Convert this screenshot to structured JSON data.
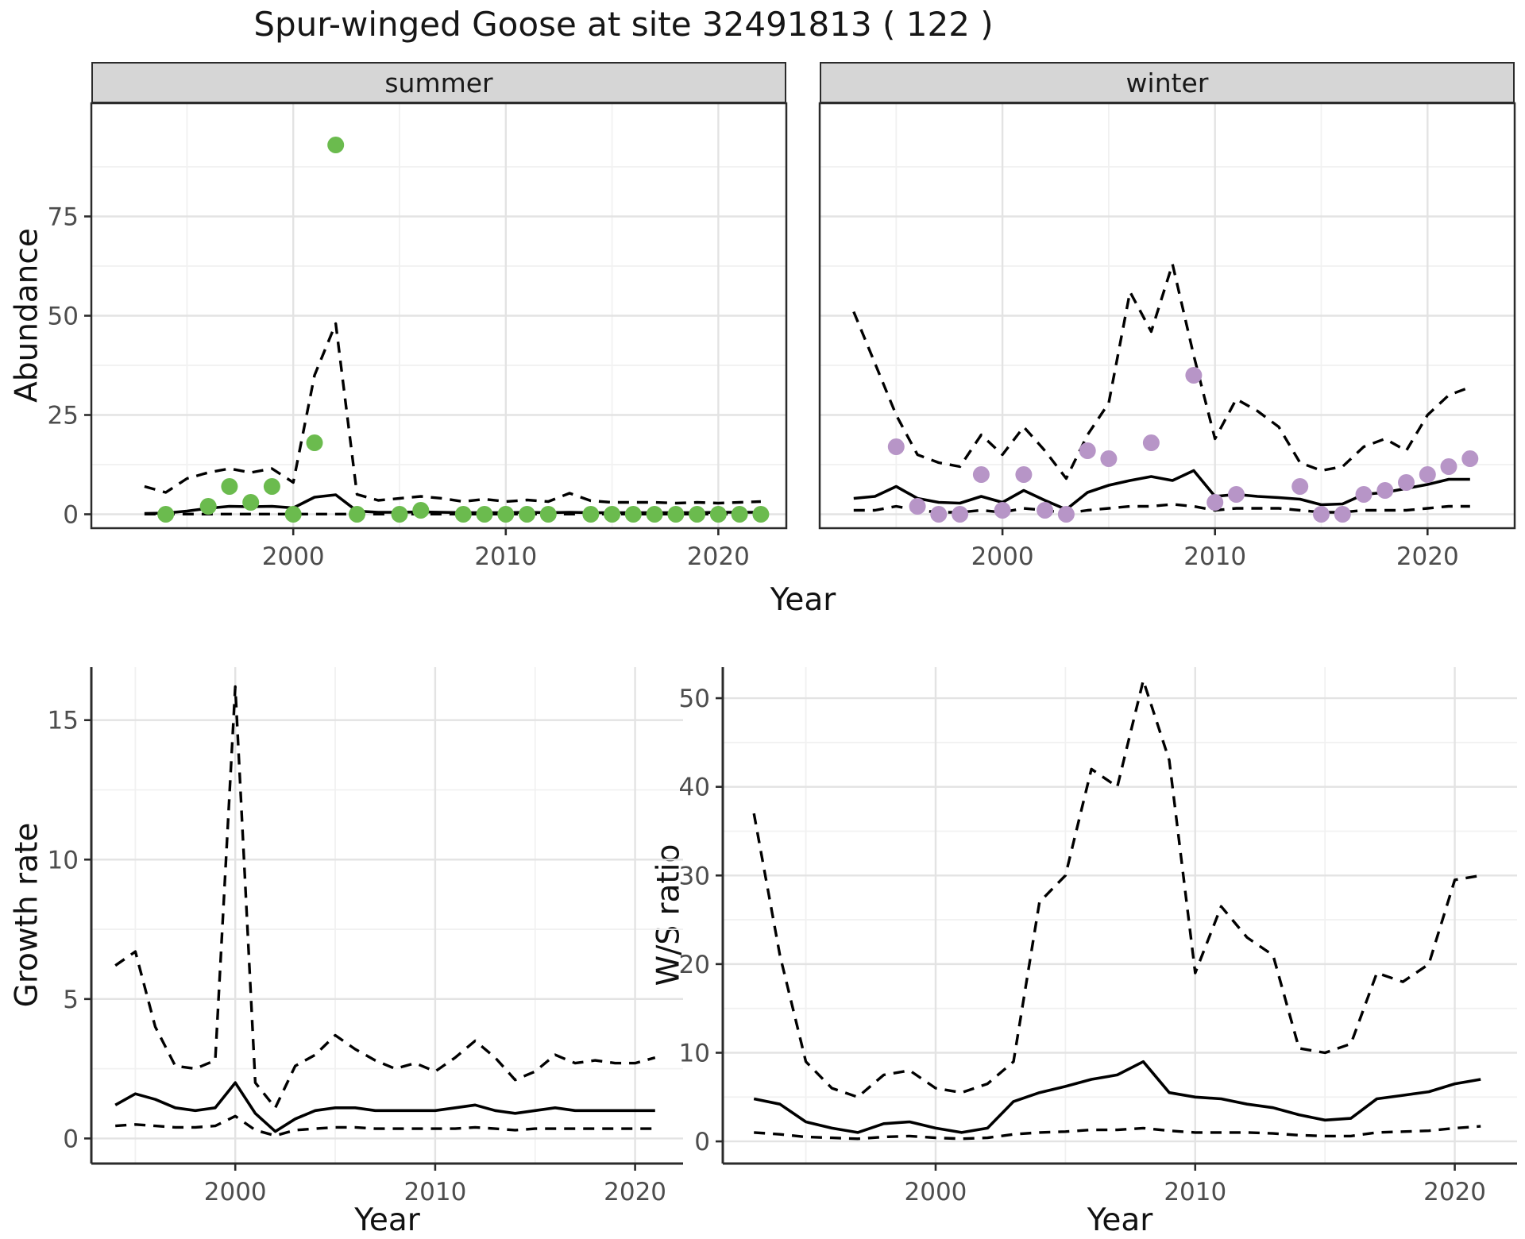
{
  "title": "Spur-winged Goose at site 32491813 ( 122 )",
  "labels": {
    "x": "Year",
    "y_abundance": "Abundance",
    "y_growth": "Growth rate",
    "y_ws": "W/S ratio",
    "facet_summer": "summer",
    "facet_winter": "winter"
  },
  "style": {
    "point_green": "#6BBB4E",
    "point_purple": "#B795C7",
    "strip_bg": "#D6D6D6",
    "grid_major": "#E3E3E3",
    "grid_minor": "#F1F1F1",
    "line": "#000000",
    "border": "#2B2B2B",
    "tick_label": "#4D4D4D"
  },
  "chart_data": [
    {
      "name": "summer_abundance",
      "type": "line",
      "facet": "summer",
      "xlabel": "Year",
      "ylabel": "Abundance",
      "point_color": "#6BBB4E",
      "axes": {
        "xlim": [
          1990.5,
          2023.2
        ],
        "ylim": [
          -3.5,
          103.5
        ],
        "xticks": [
          2000,
          2010,
          2020
        ],
        "xminor": [
          1995,
          2005,
          2015
        ],
        "yticks": [
          0,
          25,
          50,
          75
        ],
        "yminor": [
          12.5,
          37.5,
          62.5,
          87.5
        ]
      },
      "years": [
        1993,
        1994,
        1995,
        1996,
        1997,
        1998,
        1999,
        2000,
        2001,
        2002,
        2003,
        2004,
        2005,
        2006,
        2007,
        2008,
        2009,
        2010,
        2011,
        2012,
        2013,
        2014,
        2015,
        2016,
        2017,
        2018,
        2019,
        2020,
        2021,
        2022
      ],
      "series": [
        {
          "name": "fit",
          "style": "solid",
          "values": [
            0.2,
            0.3,
            0.8,
            1.5,
            2.0,
            1.9,
            2.0,
            1.6,
            4.3,
            4.9,
            0.8,
            0.5,
            0.5,
            0.6,
            0.5,
            0.4,
            0.4,
            0.4,
            0.5,
            0.4,
            0.5,
            0.4,
            0.4,
            0.4,
            0.4,
            0.4,
            0.4,
            0.5,
            0.5,
            0.5
          ]
        },
        {
          "name": "upper_ci",
          "style": "dashed",
          "values": [
            7,
            5.5,
            9,
            10.5,
            11.5,
            10.5,
            11.5,
            8,
            35,
            48,
            5,
            3.5,
            4,
            4.5,
            4,
            3.2,
            3.8,
            3.2,
            3.6,
            3.2,
            5.3,
            3.4,
            3,
            3,
            3,
            2.8,
            3,
            2.8,
            3,
            3.2
          ]
        },
        {
          "name": "lower_ci",
          "style": "dashed",
          "values": [
            0.05,
            0.05,
            0.05,
            0.05,
            0.05,
            0.05,
            0.05,
            0.05,
            0.05,
            0.05,
            0.05,
            0.05,
            0.05,
            0.05,
            0.05,
            0.05,
            0.05,
            0.05,
            0.05,
            0.05,
            0.05,
            0.05,
            0.05,
            0.05,
            0.05,
            0.05,
            0.05,
            0.05,
            0.05,
            0.05
          ]
        }
      ],
      "observations": [
        [
          1994,
          0
        ],
        [
          1996,
          2
        ],
        [
          1997,
          7
        ],
        [
          1998,
          3
        ],
        [
          1999,
          7
        ],
        [
          2000,
          0
        ],
        [
          2001,
          18
        ],
        [
          2002,
          93
        ],
        [
          2003,
          0
        ],
        [
          2005,
          0
        ],
        [
          2006,
          1
        ],
        [
          2008,
          0
        ],
        [
          2009,
          0
        ],
        [
          2010,
          0
        ],
        [
          2011,
          0
        ],
        [
          2012,
          0
        ],
        [
          2014,
          0
        ],
        [
          2015,
          0
        ],
        [
          2016,
          0
        ],
        [
          2017,
          0
        ],
        [
          2018,
          0
        ],
        [
          2019,
          0
        ],
        [
          2020,
          0
        ],
        [
          2021,
          0
        ],
        [
          2022,
          0
        ]
      ]
    },
    {
      "name": "winter_abundance",
      "type": "line",
      "facet": "winter",
      "xlabel": "Year",
      "ylabel": "Abundance",
      "point_color": "#B795C7",
      "axes": {
        "xlim": [
          1991.4,
          2024.1
        ],
        "ylim": [
          -3.5,
          103.5
        ],
        "xticks": [
          2000,
          2010,
          2020
        ],
        "xminor": [
          1995,
          2005,
          2015
        ],
        "yticks": [
          0,
          25,
          50,
          75
        ],
        "yminor": [
          12.5,
          37.5,
          62.5,
          87.5
        ]
      },
      "years": [
        1993,
        1994,
        1995,
        1996,
        1997,
        1998,
        1999,
        2000,
        2001,
        2002,
        2003,
        2004,
        2005,
        2006,
        2007,
        2008,
        2009,
        2010,
        2011,
        2012,
        2013,
        2014,
        2015,
        2016,
        2017,
        2018,
        2019,
        2020,
        2021,
        2022
      ],
      "series": [
        {
          "name": "fit",
          "style": "solid",
          "values": [
            4,
            4.5,
            7,
            4,
            3,
            2.8,
            4.5,
            3,
            6,
            3.5,
            1.2,
            5.5,
            7.3,
            8.5,
            9.5,
            8.5,
            11,
            4.5,
            5,
            4.5,
            4.2,
            3.8,
            2.4,
            2.6,
            5,
            5.5,
            6.5,
            7.5,
            8.8,
            8.8
          ]
        },
        {
          "name": "upper_ci",
          "style": "dashed",
          "values": [
            51,
            38,
            25,
            15,
            13,
            12,
            20,
            15,
            22,
            16,
            9,
            20,
            28,
            56,
            46,
            63,
            40,
            19,
            29,
            26,
            22,
            13,
            11,
            12,
            17,
            19,
            16,
            25,
            30,
            32
          ]
        },
        {
          "name": "lower_ci",
          "style": "dashed",
          "values": [
            1,
            1,
            2,
            1,
            0.5,
            0.5,
            1,
            0.5,
            1.5,
            1,
            0.3,
            1,
            1.5,
            2,
            2,
            2.5,
            2,
            1,
            1.5,
            1.5,
            1.5,
            1,
            0.5,
            0.5,
            1,
            1,
            1,
            1.5,
            2,
            2
          ]
        }
      ],
      "observations": [
        [
          1995,
          17
        ],
        [
          1996,
          2
        ],
        [
          1997,
          0
        ],
        [
          1998,
          0
        ],
        [
          1999,
          10
        ],
        [
          2000,
          1
        ],
        [
          2001,
          10
        ],
        [
          2002,
          1
        ],
        [
          2003,
          0
        ],
        [
          2004,
          16
        ],
        [
          2005,
          14
        ],
        [
          2007,
          18
        ],
        [
          2009,
          35
        ],
        [
          2010,
          3
        ],
        [
          2011,
          5
        ],
        [
          2014,
          7
        ],
        [
          2015,
          0
        ],
        [
          2016,
          0
        ],
        [
          2017,
          5
        ],
        [
          2018,
          6
        ],
        [
          2019,
          8
        ],
        [
          2020,
          10
        ],
        [
          2021,
          12
        ],
        [
          2022,
          14
        ]
      ]
    },
    {
      "name": "growth_rate",
      "type": "line",
      "facet": null,
      "xlabel": "Year",
      "ylabel": "Growth rate",
      "point_color": null,
      "axes": {
        "xlim": [
          1992.8,
          2022.4
        ],
        "ylim": [
          -0.9,
          16.9
        ],
        "xticks": [
          2000,
          2010,
          2020
        ],
        "xminor": [
          1995,
          2005,
          2015
        ],
        "yticks": [
          0,
          5,
          10,
          15
        ],
        "yminor": [
          2.5,
          7.5,
          12.5
        ]
      },
      "years": [
        1994,
        1995,
        1996,
        1997,
        1998,
        1999,
        2000,
        2001,
        2002,
        2003,
        2004,
        2005,
        2006,
        2007,
        2008,
        2009,
        2010,
        2011,
        2012,
        2013,
        2014,
        2015,
        2016,
        2017,
        2018,
        2019,
        2020,
        2021
      ],
      "series": [
        {
          "name": "fit",
          "style": "solid",
          "values": [
            1.2,
            1.6,
            1.4,
            1.1,
            1.0,
            1.1,
            2.0,
            0.9,
            0.25,
            0.7,
            1.0,
            1.1,
            1.1,
            1.0,
            1.0,
            1.0,
            1.0,
            1.1,
            1.2,
            1.0,
            0.9,
            1.0,
            1.1,
            1.0,
            1.0,
            1.0,
            1.0,
            1.0
          ]
        },
        {
          "name": "upper_ci",
          "style": "dashed",
          "values": [
            6.2,
            6.7,
            4.0,
            2.6,
            2.5,
            2.8,
            16.2,
            2.0,
            1.1,
            2.6,
            3.0,
            3.7,
            3.2,
            2.8,
            2.5,
            2.7,
            2.4,
            2.9,
            3.5,
            2.9,
            2.1,
            2.4,
            3.0,
            2.7,
            2.8,
            2.7,
            2.7,
            2.9
          ]
        },
        {
          "name": "lower_ci",
          "style": "dashed",
          "values": [
            0.45,
            0.5,
            0.45,
            0.4,
            0.4,
            0.45,
            0.8,
            0.3,
            0.1,
            0.3,
            0.35,
            0.4,
            0.4,
            0.35,
            0.35,
            0.35,
            0.35,
            0.35,
            0.4,
            0.35,
            0.3,
            0.35,
            0.35,
            0.35,
            0.35,
            0.35,
            0.35,
            0.35
          ]
        }
      ],
      "observations": []
    },
    {
      "name": "ws_ratio",
      "type": "line",
      "facet": null,
      "xlabel": "Year",
      "ylabel": "W/S ratio",
      "point_color": null,
      "axes": {
        "xlim": [
          1991.8,
          2022.4
        ],
        "ylim": [
          -2.5,
          53.5
        ],
        "xticks": [
          2000,
          2010,
          2020
        ],
        "xminor": [
          1995,
          2005,
          2015
        ],
        "yticks": [
          0,
          10,
          20,
          30,
          40,
          50
        ],
        "yminor": [
          5,
          15,
          25,
          35,
          45
        ]
      },
      "years": [
        1993,
        1994,
        1995,
        1996,
        1997,
        1998,
        1999,
        2000,
        2001,
        2002,
        2003,
        2004,
        2005,
        2006,
        2007,
        2008,
        2009,
        2010,
        2011,
        2012,
        2013,
        2014,
        2015,
        2016,
        2017,
        2018,
        2019,
        2020,
        2021
      ],
      "series": [
        {
          "name": "fit",
          "style": "solid",
          "values": [
            4.8,
            4.2,
            2.2,
            1.5,
            1.0,
            2.0,
            2.2,
            1.5,
            1.0,
            1.5,
            4.5,
            5.5,
            6.2,
            7.0,
            7.5,
            9.0,
            5.5,
            5.0,
            4.8,
            4.2,
            3.8,
            3.0,
            2.4,
            2.6,
            4.8,
            5.2,
            5.6,
            6.5,
            7.0
          ]
        },
        {
          "name": "upper_ci",
          "style": "dashed",
          "values": [
            37,
            21,
            9,
            6,
            5,
            7.5,
            8,
            6,
            5.5,
            6.5,
            9,
            27,
            30,
            42,
            40,
            52,
            43,
            19,
            26.5,
            23,
            21,
            10.5,
            10,
            11,
            19,
            18,
            20,
            29.5,
            30
          ]
        },
        {
          "name": "lower_ci",
          "style": "dashed",
          "values": [
            1.0,
            0.8,
            0.5,
            0.4,
            0.3,
            0.5,
            0.6,
            0.4,
            0.3,
            0.4,
            0.8,
            1.0,
            1.1,
            1.3,
            1.3,
            1.5,
            1.2,
            1.0,
            1.0,
            1.0,
            0.9,
            0.7,
            0.6,
            0.6,
            1.0,
            1.1,
            1.2,
            1.5,
            1.7
          ]
        }
      ],
      "observations": []
    }
  ]
}
